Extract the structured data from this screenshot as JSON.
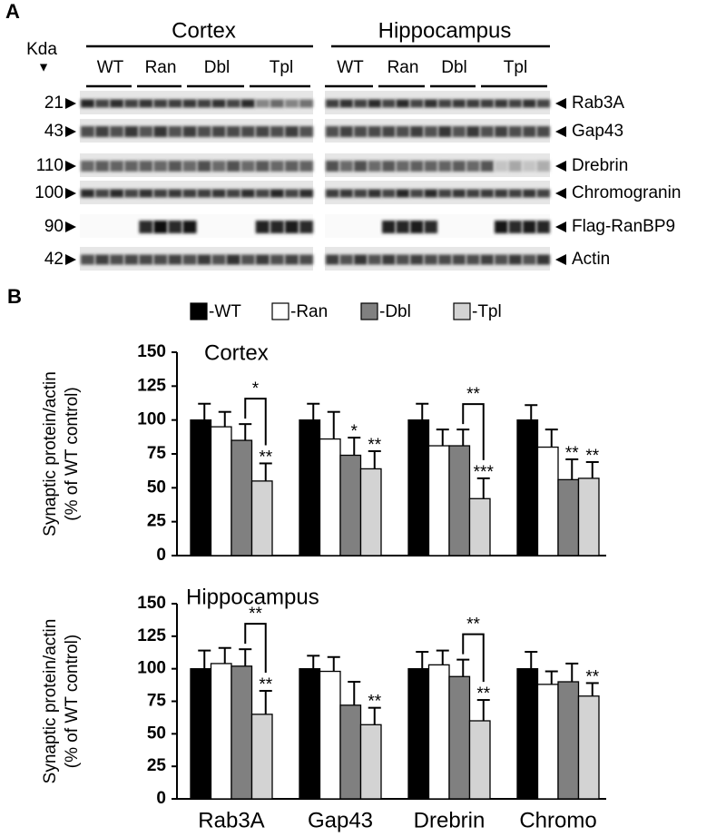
{
  "panel_a": {
    "label": "A",
    "kda": "Kda",
    "kda_arrow": "▼",
    "regions": [
      {
        "name": "Cortex",
        "groups": [
          "WT",
          "Ran",
          "Dbl",
          "Tpl"
        ]
      },
      {
        "name": "Hippocampus",
        "groups": [
          "WT",
          "Ran",
          "Dbl",
          "Tpl"
        ]
      }
    ],
    "rows": [
      {
        "kda": "21",
        "protein": "Rab3A"
      },
      {
        "kda": "43",
        "protein": "Gap43"
      },
      {
        "kda": "110",
        "protein": "Drebrin"
      },
      {
        "kda": "100",
        "protein": "Chromogranin"
      },
      {
        "kda": "90",
        "protein": "Flag-RanBP9"
      },
      {
        "kda": "42",
        "protein": "Actin"
      }
    ]
  },
  "panel_b": {
    "label": "B"
  },
  "chart_data": [
    {
      "type": "bar",
      "title": "Cortex",
      "ylabel": [
        "Synaptic protein/actin",
        "(% of WT control)"
      ],
      "ylim": [
        0,
        150
      ],
      "yticks": [
        0,
        25,
        50,
        75,
        100,
        125,
        150
      ],
      "series": [
        {
          "name": "-WT",
          "color": "#000000",
          "values": [
            100,
            100,
            100,
            100
          ],
          "errors": [
            12,
            12,
            12,
            11
          ]
        },
        {
          "name": "-Ran",
          "color": "#ffffff",
          "values": [
            95,
            86,
            81,
            80
          ],
          "errors": [
            11,
            20,
            12,
            13
          ]
        },
        {
          "name": "-Dbl",
          "color": "#808080",
          "values": [
            85,
            74,
            81,
            56
          ],
          "errors": [
            12,
            13,
            12,
            15
          ]
        },
        {
          "name": "-Tpl",
          "color": "#d3d3d3",
          "values": [
            55,
            64,
            42,
            57
          ],
          "errors": [
            13,
            13,
            15,
            12
          ]
        }
      ],
      "annotations": [
        {
          "text": "*",
          "category": 0,
          "series": [
            2,
            3
          ]
        },
        {
          "text": "**",
          "category": 0,
          "series": 3
        },
        {
          "text": "*",
          "category": 1,
          "series": 2
        },
        {
          "text": "**",
          "category": 1,
          "series": 3
        },
        {
          "text": "**",
          "category": 2,
          "series": [
            2,
            3
          ]
        },
        {
          "text": "***",
          "category": 2,
          "series": 3
        },
        {
          "text": "**",
          "category": 3,
          "series": 2
        },
        {
          "text": "**",
          "category": 3,
          "series": 3
        }
      ]
    },
    {
      "type": "bar",
      "title": "Hippocampus",
      "ylabel": [
        "Synaptic protein/actin",
        "(% of WT control)"
      ],
      "categories": [
        "Rab3A",
        "Gap43",
        "Drebrin",
        "Chromo"
      ],
      "ylim": [
        0,
        150
      ],
      "yticks": [
        0,
        25,
        50,
        75,
        100,
        125,
        150
      ],
      "series": [
        {
          "color": "#000000",
          "values": [
            100,
            100,
            100,
            100
          ],
          "errors": [
            14,
            10,
            13,
            13
          ]
        },
        {
          "color": "#ffffff",
          "values": [
            104,
            98,
            103,
            88
          ],
          "errors": [
            12,
            11,
            11,
            10
          ]
        },
        {
          "color": "#808080",
          "values": [
            102,
            72,
            94,
            90
          ],
          "errors": [
            13,
            18,
            13,
            14
          ]
        },
        {
          "color": "#d3d3d3",
          "values": [
            65,
            57,
            60,
            79
          ],
          "errors": [
            18,
            13,
            16,
            10
          ]
        }
      ],
      "annotations": [
        {
          "text": "**",
          "category": 0,
          "series": [
            2,
            3
          ]
        },
        {
          "text": "**",
          "category": 0,
          "series": 3
        },
        {
          "text": "**",
          "category": 1,
          "series": 3
        },
        {
          "text": "**",
          "category": 2,
          "series": [
            2,
            3
          ]
        },
        {
          "text": "**",
          "category": 2,
          "series": 3
        },
        {
          "text": "**",
          "category": 3,
          "series": 3
        }
      ]
    }
  ]
}
